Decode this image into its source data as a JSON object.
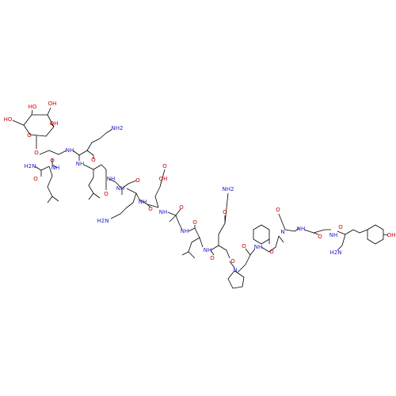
{
  "atoms": [
    {
      "label": "HO"
    },
    {
      "label": "OH"
    },
    {
      "label": "HO"
    },
    {
      "label": "OH"
    },
    {
      "label": "O"
    },
    {
      "label": "O"
    },
    {
      "label": "NH"
    },
    {
      "label": "O"
    },
    {
      "label": "H2N"
    },
    {
      "label": "O"
    },
    {
      "label": "NH"
    },
    {
      "label": "NH2"
    },
    {
      "label": "O"
    },
    {
      "label": "NH"
    },
    {
      "label": "O"
    },
    {
      "label": "NH"
    },
    {
      "label": "NH"
    },
    {
      "label": "O"
    },
    {
      "label": "NH"
    },
    {
      "label": "O"
    },
    {
      "label": "OH"
    },
    {
      "label": "O"
    },
    {
      "label": "H2N"
    },
    {
      "label": "NH"
    },
    {
      "label": "O"
    },
    {
      "label": "NH"
    },
    {
      "label": "O"
    },
    {
      "label": "NH2"
    },
    {
      "label": "O"
    },
    {
      "label": "NH"
    },
    {
      "label": "O"
    },
    {
      "label": "O"
    },
    {
      "label": "N"
    },
    {
      "label": "O"
    },
    {
      "label": "NH"
    },
    {
      "label": "O"
    },
    {
      "label": "N"
    },
    {
      "label": "O"
    },
    {
      "label": "NH"
    },
    {
      "label": "O"
    },
    {
      "label": "NH"
    },
    {
      "label": "O"
    },
    {
      "label": "H2N"
    },
    {
      "label": "OH"
    }
  ]
}
